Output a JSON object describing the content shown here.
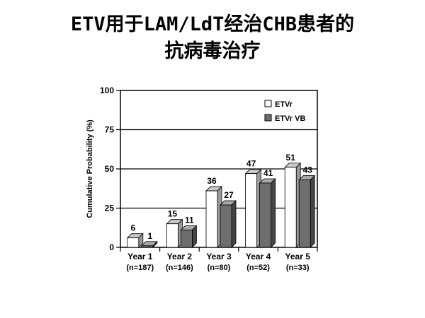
{
  "slide": {
    "title_line1": "ETV用于LAM/LdT经治CHB患者的",
    "title_line2": "抗病毒治疗"
  },
  "chart_data": {
    "type": "bar",
    "title": "",
    "ylabel": "Cumulative Probability (%)",
    "xlabel": "",
    "ylim": [
      0,
      100
    ],
    "yticks": [
      0,
      25,
      50,
      75,
      100
    ],
    "grid": true,
    "legend_position": "top-right",
    "categories": [
      "Year 1",
      "Year 2",
      "Year 3",
      "Year 4",
      "Year 5"
    ],
    "category_sublabels": [
      "(n=187)",
      "(n=146)",
      "(n=80)",
      "(n=52)",
      "(n=33)"
    ],
    "series": [
      {
        "name": "ETVr",
        "values": [
          6,
          15,
          36,
          47,
          51
        ],
        "color": "#ffffff",
        "top_color": "#c8c8c8",
        "side_color": "#9a9a9a"
      },
      {
        "name": "ETVr VB",
        "values": [
          1,
          11,
          27,
          41,
          43
        ],
        "color": "#6e6e6e",
        "top_color": "#a8a8a8",
        "side_color": "#454545"
      }
    ]
  }
}
